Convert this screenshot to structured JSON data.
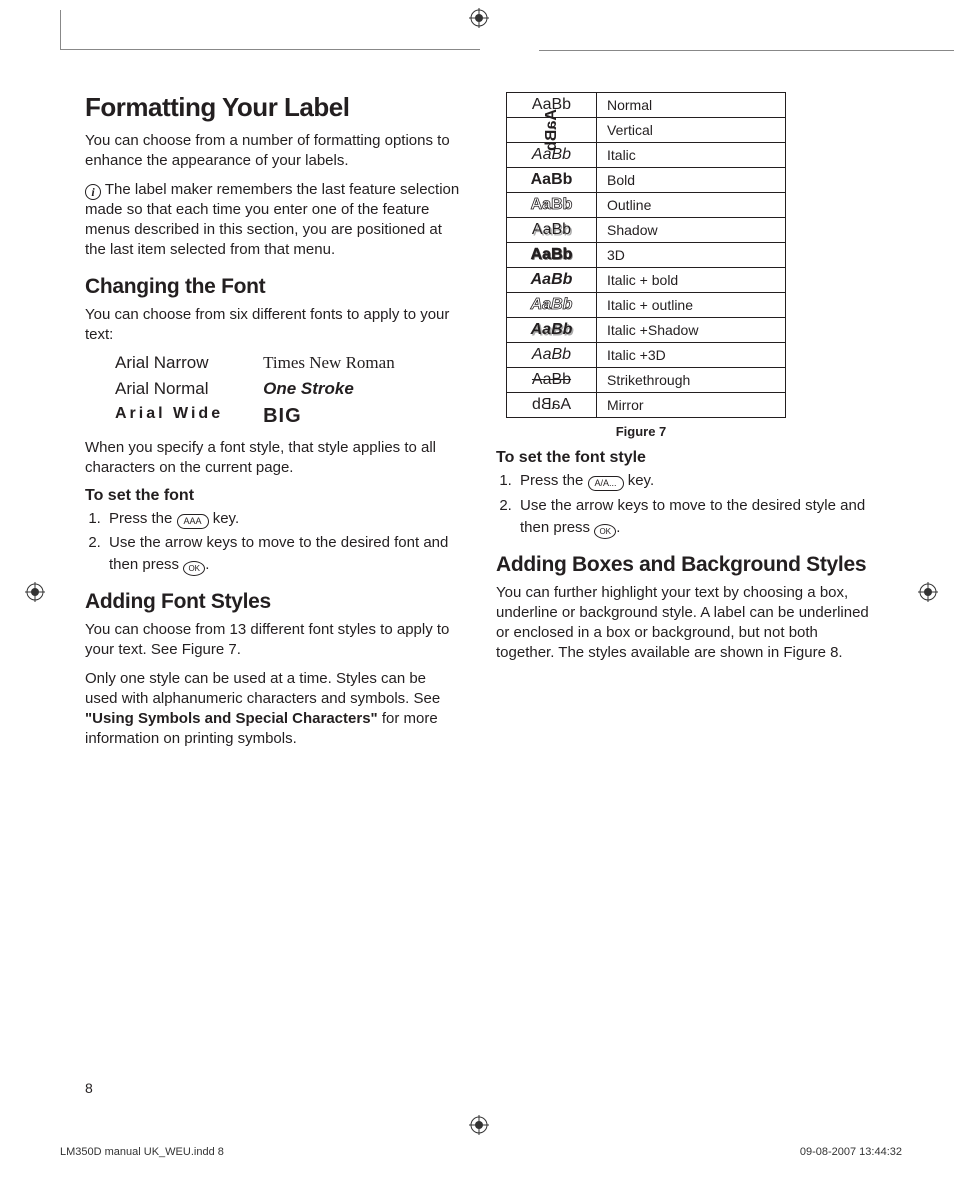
{
  "h1": "Formatting Your Label",
  "p1": "You can choose from a number of formatting options to enhance the appearance of your labels.",
  "p2": " The label maker remembers the last feature selection made so that each time you enter one of the feature menus described in this section, you are positioned at the last item selected from that menu.",
  "h2_font": "Changing the Font",
  "p3": "You can choose from six different fonts to apply to your text:",
  "fonts": {
    "narrow": "Arial Narrow",
    "normal": "Arial Normal",
    "wide": "Arial Wide",
    "times": "Times New Roman",
    "onestroke": "One Stroke",
    "big": "BIG"
  },
  "p4": "When you specify a font style, that style applies to all characters on the current page.",
  "h3_setfont": "To set the font",
  "li1a": "Press the ",
  "li1b": " key.",
  "li2a": "Use the arrow keys to move to the desired font and then press ",
  "li2b": ".",
  "h2_styles": "Adding Font Styles",
  "p5": "You can choose from 13 different font styles to apply to your text. See Figure 7.",
  "p6a": "Only one style can be used at a time. Styles can be used with alphanumeric characters and symbols. See ",
  "p6b": "\"Using Symbols and Special Characters\"",
  "p6c": " for more information on printing symbols.",
  "styles_rows": [
    {
      "sample": "AaBb",
      "cls": "",
      "label": "Normal"
    },
    {
      "sample": "AaBb",
      "cls": "st-vertical",
      "label": "Vertical"
    },
    {
      "sample": "AaBb",
      "cls": "st-italic",
      "label": "Italic"
    },
    {
      "sample": "AaBb",
      "cls": "st-bold",
      "label": "Bold"
    },
    {
      "sample": "AaBb",
      "cls": "st-outline",
      "label": "Outline"
    },
    {
      "sample": "AaBb",
      "cls": "st-shadow",
      "label": "Shadow"
    },
    {
      "sample": "AaBb",
      "cls": "st-3d",
      "label": "3D"
    },
    {
      "sample": "AaBb",
      "cls": "st-ibold",
      "label": "Italic + bold"
    },
    {
      "sample": "AaBb",
      "cls": "st-ioutline",
      "label": "Italic + outline"
    },
    {
      "sample": "AaBb",
      "cls": "st-ishadow",
      "label": "Italic +Shadow"
    },
    {
      "sample": "AaBb",
      "cls": "st-i3d",
      "label": "Italic +3D"
    },
    {
      "sample": "AaBb",
      "cls": "st-strike",
      "label": "Strikethrough"
    },
    {
      "sample": "AaBb",
      "cls": "st-mirror",
      "label": "Mirror"
    }
  ],
  "fig7": "Figure 7",
  "h3_setstyle": "To set the font style",
  "li3a": "Press the ",
  "li3b": " key.",
  "li4a": "Use the arrow keys to move to the desired style and then press ",
  "li4b": ".",
  "h2_boxes": "Adding Boxes and Background Styles",
  "p7": "You can further highlight your text by choosing a box, underline or background style. A label can be underlined or enclosed in a box or background, but not both together. The styles available are shown in Figure 8.",
  "page_num": "8",
  "footer_left": "LM350D manual UK_WEU.indd   8",
  "footer_right": "09-08-2007   13:44:32",
  "key_aaa": "AAA",
  "key_ok": "OK",
  "key_style": "A/A..."
}
